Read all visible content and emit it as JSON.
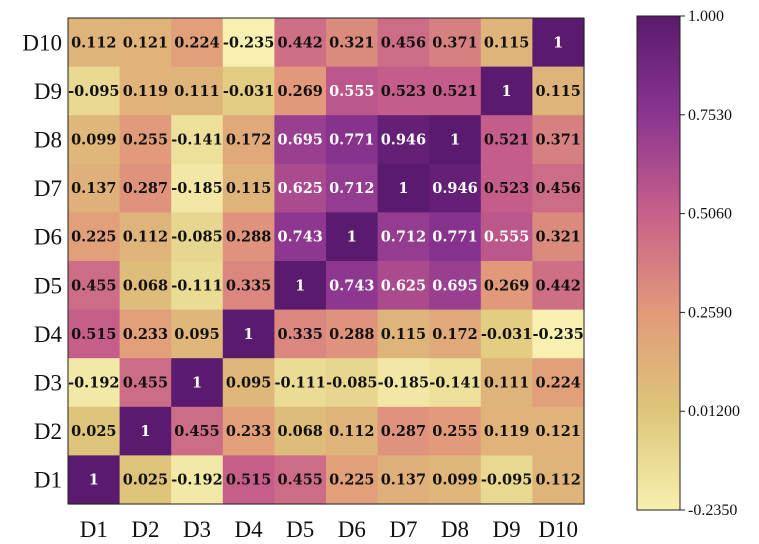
{
  "chart_data": {
    "type": "heatmap",
    "x_labels": [
      "D1",
      "D2",
      "D3",
      "D4",
      "D5",
      "D6",
      "D7",
      "D8",
      "D9",
      "D10"
    ],
    "y_labels_top_to_bottom": [
      "D10",
      "D9",
      "D8",
      "D7",
      "D6",
      "D5",
      "D4",
      "D3",
      "D2",
      "D1"
    ],
    "cells_top_to_bottom": [
      [
        "0.112",
        "0.121",
        "0.224",
        "-0.235",
        "0.442",
        "0.321",
        "0.456",
        "0.371",
        "0.115",
        "1"
      ],
      [
        "-0.095",
        "0.119",
        "0.111",
        "-0.031",
        "0.269",
        "0.555",
        "0.523",
        "0.521",
        "1",
        "0.115"
      ],
      [
        "0.099",
        "0.255",
        "-0.141",
        "0.172",
        "0.695",
        "0.771",
        "0.946",
        "1",
        "0.521",
        "0.371"
      ],
      [
        "0.137",
        "0.287",
        "-0.185",
        "0.115",
        "0.625",
        "0.712",
        "1",
        "0.946",
        "0.523",
        "0.456"
      ],
      [
        "0.225",
        "0.112",
        "-0.085",
        "0.288",
        "0.743",
        "1",
        "0.712",
        "0.771",
        "0.555",
        "0.321"
      ],
      [
        "0.455",
        "0.068",
        "-0.111",
        "0.335",
        "1",
        "0.743",
        "0.625",
        "0.695",
        "0.269",
        "0.442"
      ],
      [
        "0.515",
        "0.233",
        "0.095",
        "1",
        "0.335",
        "0.288",
        "0.115",
        "0.172",
        "-0.031",
        "-0.235"
      ],
      [
        "-0.192",
        "0.455",
        "1",
        "0.095",
        "-0.111",
        "-0.085",
        "-0.185",
        "-0.141",
        "0.111",
        "0.224"
      ],
      [
        "0.025",
        "1",
        "0.455",
        "0.233",
        "0.068",
        "0.112",
        "0.287",
        "0.255",
        "0.119",
        "0.121"
      ],
      [
        "1",
        "0.025",
        "-0.192",
        "0.515",
        "0.455",
        "0.225",
        "0.137",
        "0.099",
        "-0.095",
        "0.112"
      ]
    ],
    "colorbar": {
      "min": -0.235,
      "max": 1.0,
      "tick_labels_top_to_bottom": [
        "1.000",
        "0.7530",
        "0.5060",
        "0.2590",
        "0.01200",
        "-0.2350"
      ],
      "colors_low_to_high": [
        "#f7f0b0",
        "#ddc67a",
        "#e29a7a",
        "#c8608a",
        "#8a3590",
        "#5a1a6e"
      ]
    }
  }
}
